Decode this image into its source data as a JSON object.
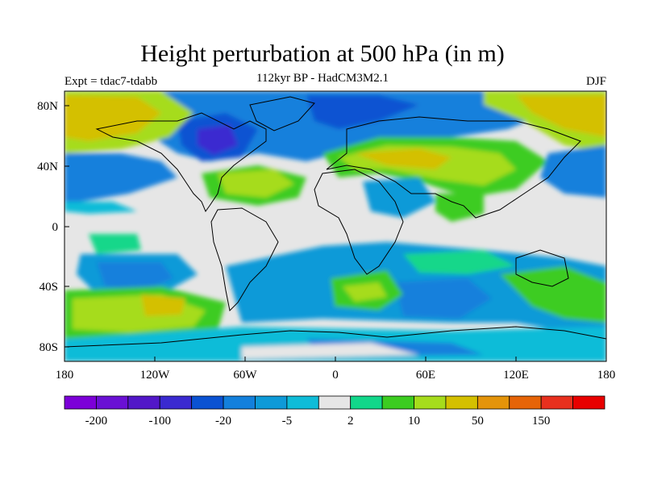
{
  "title": "Height perturbation at 500 hPa (in m)",
  "subtitle": "112kyr BP - HadCM3M2.1",
  "experiment": "Expt = tdac7-tdabb",
  "season": "DJF",
  "map": {
    "projection": "cylindrical equidistant",
    "lon_range": [
      -180,
      180
    ],
    "lat_range": [
      -90,
      90
    ],
    "background_color": "#e6e6e6",
    "x_ticks": [
      "180",
      "120W",
      "60W",
      "0",
      "60E",
      "120E",
      "180"
    ],
    "y_ticks": [
      "80N",
      "40N",
      "0",
      "40S",
      "80S"
    ],
    "features": [
      {
        "name": "arctic positive anomaly",
        "lon": -150,
        "lat": 78,
        "level": "50"
      },
      {
        "name": "north atlantic negative anomaly",
        "lon": -20,
        "lat": 70,
        "level": "-20"
      },
      {
        "name": "north america negative anomaly",
        "lon": -100,
        "lat": 58,
        "level": "-100"
      },
      {
        "name": "eurasian positive anomaly",
        "lon": 60,
        "lat": 45,
        "level": "50"
      },
      {
        "name": "north pacific positive anomaly",
        "lon": 160,
        "lat": 70,
        "level": "50"
      },
      {
        "name": "south pacific positive anomaly",
        "lon": -145,
        "lat": -50,
        "level": "50"
      },
      {
        "name": "south atlantic positive anomaly",
        "lon": 20,
        "lat": -45,
        "level": "10"
      },
      {
        "name": "southern ocean negative anomaly",
        "lon": 60,
        "lat": -55,
        "level": "-20"
      }
    ]
  },
  "chart_data": {
    "type": "heatmap",
    "title": "Height perturbation at 500 hPa (in m)",
    "subtitle": "112kyr BP - HadCM3M2.1",
    "units": "m",
    "colorbar": {
      "colors": [
        "#7c00d8",
        "#6a10d4",
        "#5217c8",
        "#3a2ad0",
        "#0a52d2",
        "#1380dc",
        "#0e9ad8",
        "#0fbcd8",
        "#e6e6e6",
        "#12d78a",
        "#3ccc20",
        "#a6dc1c",
        "#d4c000",
        "#e4940a",
        "#e66408",
        "#e8301e",
        "#e80000"
      ],
      "tick_labels": [
        "-200",
        "-100",
        "-20",
        "-5",
        "2",
        "10",
        "50",
        "150"
      ]
    }
  }
}
